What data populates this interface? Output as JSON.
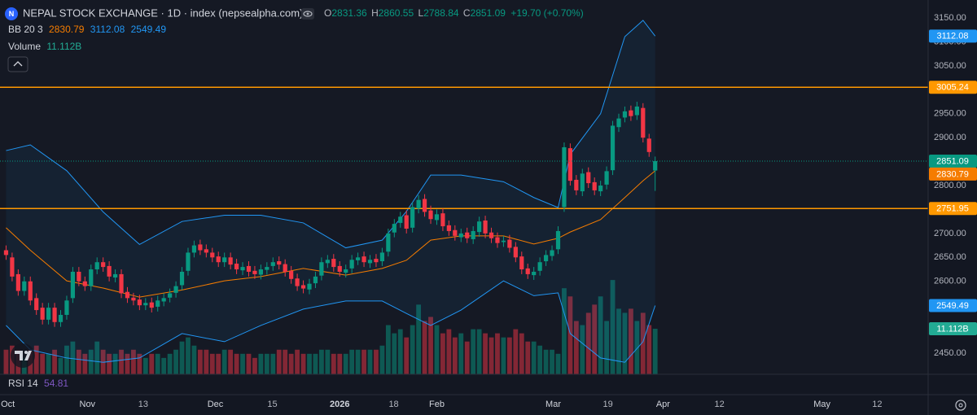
{
  "chart_data": {
    "type": "candlestick",
    "logo_letter": "N",
    "title": "NEPAL STOCK EXCHANGE · 1D · index (nepsealpha.com)",
    "ohlc_labels": [
      "O",
      "H",
      "L",
      "C"
    ],
    "change": "+19.70 (+0.70%)",
    "up_color": "#089981",
    "down_color": "#f23645",
    "open": [
      2665,
      2650,
      2615,
      2580,
      2600,
      2565,
      2545,
      2520,
      2545,
      2515,
      2530,
      2565,
      2620,
      2600,
      2590,
      2625,
      2640,
      2632,
      2608,
      2615,
      2578,
      2566,
      2562,
      2550,
      2556,
      2547,
      2558,
      2566,
      2576,
      2592,
      2622,
      2660,
      2677,
      2667,
      2660,
      2652,
      2640,
      2650,
      2637,
      2623,
      2632,
      2622,
      2614,
      2624,
      2632,
      2642,
      2636,
      2622,
      2606,
      2592,
      2583,
      2596,
      2612,
      2638,
      2647,
      2632,
      2618,
      2627,
      2644,
      2652,
      2638,
      2647,
      2642,
      2662,
      2702,
      2722,
      2738,
      2712,
      2752,
      2772,
      2748,
      2728,
      2742,
      2717,
      2707,
      2692,
      2702,
      2688,
      2703,
      2727,
      2702,
      2692,
      2682,
      2687,
      2672,
      2652,
      2627,
      2613,
      2622,
      2642,
      2653,
      2667,
      2755,
      2878,
      2812,
      2788,
      2828,
      2807,
      2788,
      2802,
      2832,
      2922,
      2942,
      2957,
      2947,
      2962,
      2898,
      2831.36
    ],
    "high": [
      2675,
      2660,
      2625,
      2610,
      2610,
      2575,
      2555,
      2555,
      2555,
      2540,
      2570,
      2630,
      2630,
      2610,
      2635,
      2650,
      2650,
      2642,
      2625,
      2625,
      2588,
      2576,
      2572,
      2565,
      2566,
      2570,
      2575,
      2585,
      2600,
      2630,
      2670,
      2685,
      2687,
      2677,
      2670,
      2662,
      2660,
      2660,
      2647,
      2640,
      2642,
      2632,
      2635,
      2640,
      2650,
      2652,
      2646,
      2632,
      2616,
      2602,
      2605,
      2620,
      2650,
      2655,
      2657,
      2642,
      2635,
      2655,
      2660,
      2662,
      2655,
      2657,
      2670,
      2710,
      2730,
      2745,
      2748,
      2765,
      2780,
      2782,
      2758,
      2750,
      2752,
      2727,
      2717,
      2710,
      2712,
      2715,
      2735,
      2737,
      2712,
      2702,
      2695,
      2697,
      2682,
      2662,
      2637,
      2630,
      2650,
      2665,
      2675,
      2715,
      2890,
      2888,
      2822,
      2835,
      2838,
      2817,
      2810,
      2840,
      2935,
      2950,
      2965,
      2967,
      2975,
      2972,
      2908,
      2860.55
    ],
    "low": [
      2645,
      2600,
      2570,
      2570,
      2550,
      2530,
      2510,
      2510,
      2505,
      2505,
      2520,
      2555,
      2590,
      2580,
      2580,
      2615,
      2620,
      2600,
      2598,
      2565,
      2555,
      2550,
      2540,
      2540,
      2535,
      2537,
      2548,
      2556,
      2566,
      2582,
      2612,
      2650,
      2655,
      2650,
      2640,
      2630,
      2630,
      2625,
      2615,
      2613,
      2610,
      2605,
      2604,
      2614,
      2622,
      2625,
      2610,
      2595,
      2580,
      2575,
      2573,
      2586,
      2602,
      2628,
      2620,
      2610,
      2608,
      2617,
      2634,
      2630,
      2628,
      2630,
      2632,
      2652,
      2692,
      2712,
      2700,
      2702,
      2742,
      2735,
      2720,
      2718,
      2705,
      2695,
      2685,
      2682,
      2680,
      2678,
      2693,
      2690,
      2680,
      2670,
      2672,
      2660,
      2640,
      2615,
      2605,
      2603,
      2612,
      2632,
      2643,
      2657,
      2745,
      2800,
      2780,
      2778,
      2795,
      2780,
      2778,
      2792,
      2822,
      2912,
      2932,
      2935,
      2937,
      2890,
      2860,
      2788.84
    ],
    "close": [
      2655,
      2610,
      2580,
      2600,
      2560,
      2540,
      2520,
      2545,
      2515,
      2530,
      2560,
      2620,
      2600,
      2590,
      2625,
      2640,
      2630,
      2610,
      2615,
      2575,
      2565,
      2560,
      2550,
      2555,
      2545,
      2560,
      2565,
      2575,
      2590,
      2620,
      2660,
      2675,
      2665,
      2660,
      2650,
      2640,
      2650,
      2635,
      2625,
      2630,
      2620,
      2615,
      2625,
      2630,
      2640,
      2635,
      2620,
      2605,
      2590,
      2585,
      2595,
      2610,
      2640,
      2645,
      2630,
      2620,
      2625,
      2645,
      2650,
      2640,
      2645,
      2640,
      2660,
      2700,
      2720,
      2735,
      2710,
      2755,
      2770,
      2745,
      2730,
      2740,
      2715,
      2705,
      2695,
      2700,
      2690,
      2705,
      2725,
      2700,
      2690,
      2680,
      2685,
      2670,
      2650,
      2625,
      2615,
      2620,
      2640,
      2655,
      2665,
      2705,
      2880,
      2810,
      2790,
      2825,
      2805,
      2790,
      2800,
      2830,
      2925,
      2940,
      2955,
      2945,
      2965,
      2900,
      2870,
      2851.09
    ],
    "ylim": [
      2405.9,
      3187.4
    ],
    "yticks": [
      {
        "value": 3150,
        "label": "3150.00"
      },
      {
        "value": 3100,
        "label": "3100.00"
      },
      {
        "value": 3050,
        "label": "3050.00"
      },
      {
        "value": 2950,
        "label": "2950.00"
      },
      {
        "value": 2900,
        "label": "2900.00"
      },
      {
        "value": 2800,
        "label": "2800.00"
      },
      {
        "value": 2700,
        "label": "2700.00"
      },
      {
        "value": 2650,
        "label": "2650.00"
      },
      {
        "value": 2600,
        "label": "2600.00"
      },
      {
        "value": 2450,
        "label": "2450.00"
      }
    ],
    "xlim": [
      -1,
      152
    ],
    "xticks": [
      {
        "value": 0.3,
        "label": "Oct"
      },
      {
        "value": 13.4,
        "label": "Nov"
      },
      {
        "value": 22.6,
        "label": "13"
      },
      {
        "value": 34.5,
        "label": "Dec"
      },
      {
        "value": 43.9,
        "label": "15"
      },
      {
        "value": 55,
        "label": "2026"
      },
      {
        "value": 63.9,
        "label": "18"
      },
      {
        "value": 71,
        "label": "Feb"
      },
      {
        "value": 90.2,
        "label": "Mar"
      },
      {
        "value": 99.2,
        "label": "19"
      },
      {
        "value": 108.3,
        "label": "Apr"
      },
      {
        "value": 117.6,
        "label": "12"
      },
      {
        "value": 134.5,
        "label": "May"
      },
      {
        "value": 143.6,
        "label": "12"
      }
    ],
    "bollinger": {
      "label": "BB 20 3",
      "x": [
        0,
        4,
        10,
        16,
        22,
        29,
        36,
        42,
        49,
        56,
        62,
        66,
        70,
        75,
        82,
        87,
        91,
        93,
        98,
        102,
        105,
        107
      ],
      "basis": {
        "color": "#f57c00",
        "values": [
          2712,
          2665,
          2601,
          2586,
          2567,
          2582,
          2601,
          2610,
          2627,
          2613,
          2627,
          2644,
          2686,
          2695,
          2695,
          2678,
          2690,
          2703,
          2729,
          2775,
          2810,
          2830.79
        ]
      },
      "upper": {
        "color": "#2196f3",
        "values": [
          2873,
          2885,
          2831,
          2745,
          2677,
          2725,
          2738,
          2738,
          2722,
          2670,
          2686,
          2746,
          2822,
          2822,
          2808,
          2775,
          2754,
          2865,
          2950,
          3111,
          3145,
          3112.08
        ]
      },
      "lower": {
        "color": "#2196f3",
        "values": [
          2508,
          2457,
          2440,
          2431,
          2440,
          2491,
          2474,
          2508,
          2542,
          2559,
          2559,
          2533,
          2508,
          2540,
          2601,
          2570,
          2576,
          2491,
          2440,
          2431,
          2474,
          2549.49
        ]
      }
    },
    "volume": {
      "label": "Volume",
      "last_label": "11.112B",
      "ylim": [
        0,
        91.3
      ],
      "values": [
        6,
        7,
        6,
        4,
        6,
        7,
        5,
        5,
        6,
        4,
        7,
        8,
        6,
        5,
        6,
        8,
        6,
        5,
        5,
        6,
        5,
        6,
        5,
        4,
        5,
        5,
        4,
        5,
        6,
        8,
        9,
        7,
        6,
        6,
        5,
        5,
        6,
        6,
        5,
        5,
        5,
        4,
        5,
        5,
        5,
        6,
        6,
        5,
        6,
        5,
        5,
        5,
        6,
        6,
        5,
        5,
        5,
        6,
        6,
        6,
        6,
        6,
        7,
        12,
        10,
        11,
        9,
        12,
        17,
        13,
        14,
        12,
        10,
        11,
        9,
        10,
        8,
        11,
        11,
        10,
        9,
        10,
        9,
        9,
        11,
        10,
        8,
        8,
        7,
        6,
        6,
        5,
        21,
        19,
        13,
        12,
        15,
        17,
        19,
        13,
        23,
        16,
        15,
        16,
        13,
        15,
        12,
        11.112
      ]
    },
    "hlines": [
      {
        "value": 3005.24,
        "color": "#ff9800"
      },
      {
        "value": 2751.95,
        "color": "#ff9800"
      }
    ],
    "rsi": {
      "label": "RSI 14",
      "value": 54.81
    }
  }
}
